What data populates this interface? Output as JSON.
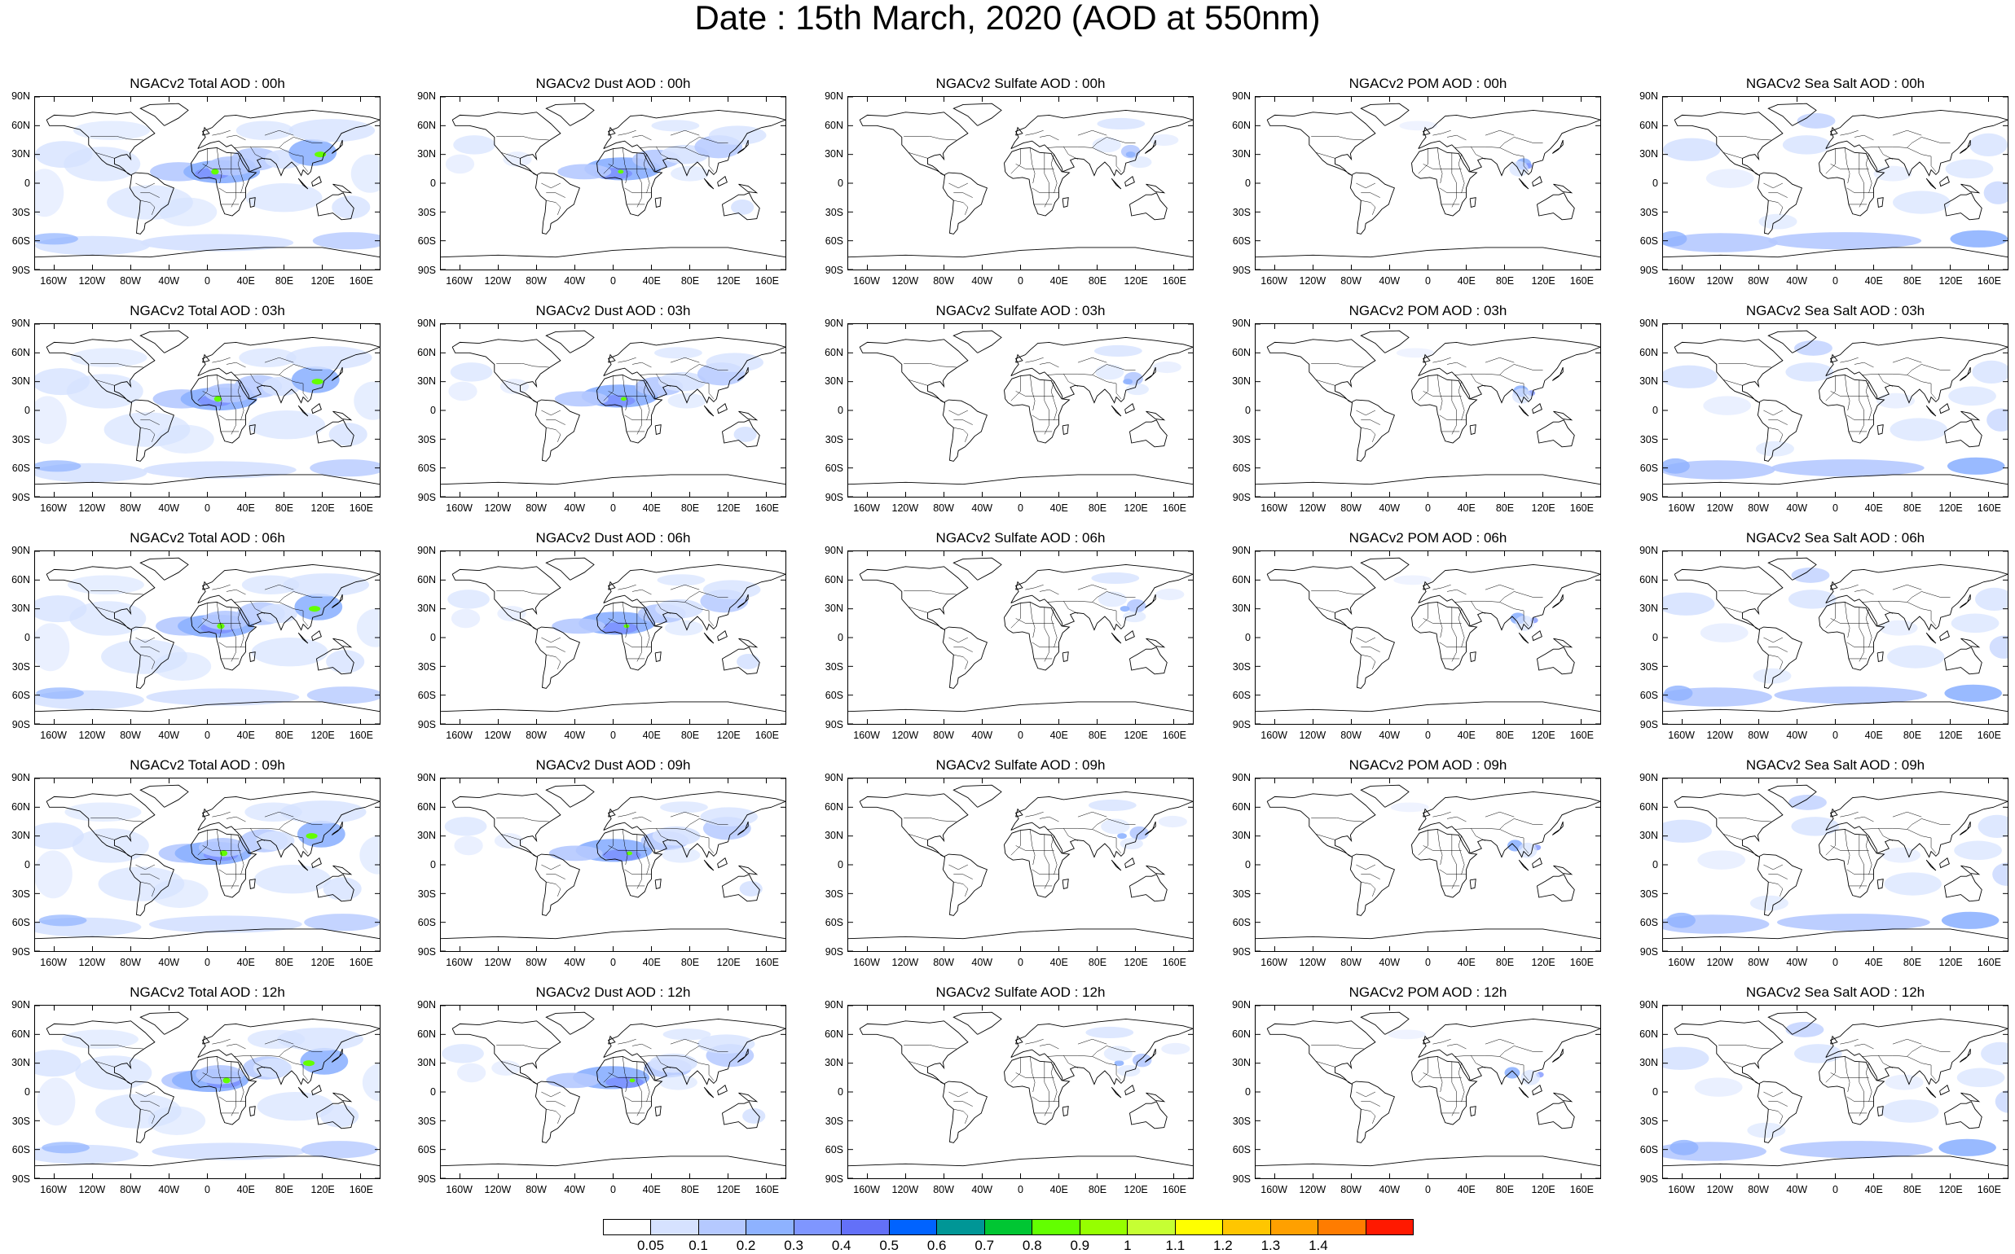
{
  "title": "Date : 15th March, 2020 (AOD at 550nm)",
  "panels": [
    [
      "NGACv2 Total AOD : 00h",
      "NGACv2 Dust AOD : 00h",
      "NGACv2 Sulfate AOD : 00h",
      "NGACv2 POM AOD : 00h",
      "NGACv2 Sea Salt AOD : 00h"
    ],
    [
      "NGACv2 Total AOD : 03h",
      "NGACv2 Dust AOD : 03h",
      "NGACv2 Sulfate AOD : 03h",
      "NGACv2 POM AOD : 03h",
      "NGACv2 Sea Salt AOD : 03h"
    ],
    [
      "NGACv2 Total AOD : 06h",
      "NGACv2 Dust AOD : 06h",
      "NGACv2 Sulfate AOD : 06h",
      "NGACv2 POM AOD : 06h",
      "NGACv2 Sea Salt AOD : 06h"
    ],
    [
      "NGACv2 Total AOD : 09h",
      "NGACv2 Dust AOD : 09h",
      "NGACv2 Sulfate AOD : 09h",
      "NGACv2 POM AOD : 09h",
      "NGACv2 Sea Salt  AOD : 09h"
    ],
    [
      "NGACv2 Total AOD : 12h",
      "NGACv2 Dust AOD : 12h",
      "NGACv2 Sulfate AOD : 12h",
      "NGACv2 POM  AOD : 12h",
      "NGACv2 Sea Salt  AOD : 12h"
    ]
  ],
  "lat_labels": [
    "90N",
    "60N",
    "30N",
    "0",
    "30S",
    "60S",
    "90S"
  ],
  "lon_labels": [
    "160W",
    "120W",
    "80W",
    "40W",
    "0",
    "40E",
    "80E",
    "120E",
    "160E"
  ],
  "colorbar": {
    "labels": [
      "0.05",
      "0.1",
      "0.2",
      "0.3",
      "0.4",
      "0.5",
      "0.6",
      "0.7",
      "0.8",
      "0.9",
      "1",
      "1.1",
      "1.2",
      "1.3",
      "1.4"
    ],
    "colors": [
      "#ffffff",
      "#d6e2ff",
      "#b5c9ff",
      "#8eb2ff",
      "#7f96ff",
      "#6370f8",
      "#0063ff",
      "#009696",
      "#00c633",
      "#63ff00",
      "#96ff00",
      "#c6ff33",
      "#ffff00",
      "#ffc600",
      "#ffa000",
      "#ff7c00",
      "#ff1900"
    ]
  },
  "map_colors": {
    "land_outline": "#000000",
    "light": "#d6e2ff",
    "mid": "#b5c9ff",
    "strong": "#8eb2ff",
    "heavy": "#7f96ff",
    "peak": "#6370f8",
    "hot": "#63ff00"
  }
}
